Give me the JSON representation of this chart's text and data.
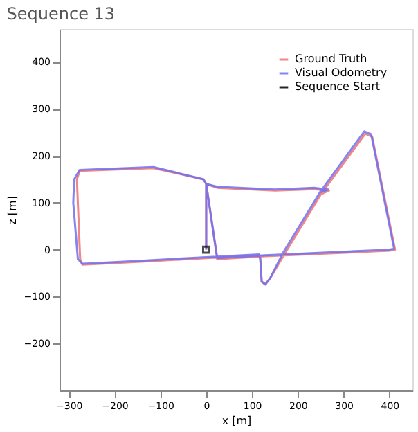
{
  "chart_data": {
    "type": "line",
    "title": "Sequence 13",
    "xlabel": "x [m]",
    "ylabel": "z [m]",
    "xlim": [
      -320,
      450
    ],
    "xticks": [
      -300,
      -200,
      -100,
      0,
      100,
      200,
      300,
      400
    ],
    "ylim": [
      -300,
      470
    ],
    "yticks": [
      -200,
      -100,
      0,
      100,
      200,
      300,
      400
    ],
    "grid": false,
    "legend": "top right",
    "line_style": "solid",
    "series": [
      {
        "name": "Ground Truth",
        "color": "#f07070",
        "x": [
          0,
          0,
          -6,
          -115,
          -276,
          -282,
          -280,
          -275,
          -270,
          -150,
          0,
          115,
          118,
          121,
          129,
          140,
          171,
          250,
          347,
          362,
          412,
          400,
          129,
          24,
          0,
          24,
          150,
          235,
          268,
          250
        ],
        "values": [
          0,
          140,
          150,
          174,
          168,
          150,
          100,
          -20,
          -32,
          -26,
          -18,
          -12,
          -20,
          -68,
          -74,
          -60,
          -9,
          118,
          247,
          241,
          0,
          -2,
          -14,
          -20,
          140,
          132,
          126,
          129,
          126,
          118
        ]
      },
      {
        "name": "Visual Odometry",
        "color": "#7070f0",
        "x": [
          0,
          0,
          -6,
          -115,
          -276,
          -288,
          -290,
          -280,
          -270,
          -150,
          0,
          115,
          118,
          121,
          129,
          140,
          168,
          248,
          345,
          360,
          410,
          398,
          129,
          24,
          0,
          24,
          150,
          235,
          266,
          248
        ],
        "values": [
          0,
          140,
          150,
          176,
          170,
          150,
          100,
          -20,
          -30,
          -24,
          -16,
          -10,
          -20,
          -68,
          -74,
          -60,
          -6,
          122,
          252,
          246,
          2,
          0,
          -12,
          -18,
          140,
          134,
          128,
          132,
          128,
          122
        ]
      },
      {
        "name": "Sequence Start",
        "type": "scatter",
        "marker": "square",
        "color": "#000000",
        "x": [
          0
        ],
        "values": [
          0
        ]
      }
    ]
  }
}
